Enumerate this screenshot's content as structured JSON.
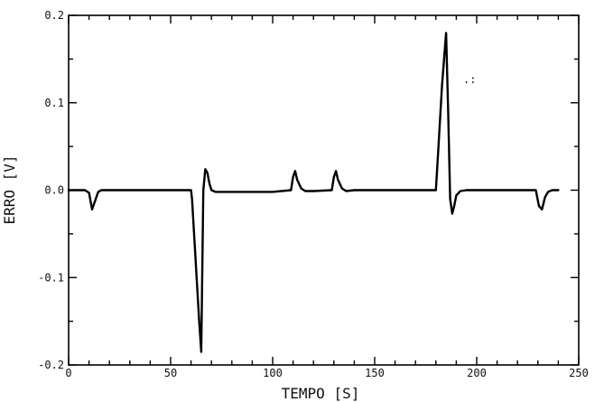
{
  "chart_data": {
    "type": "line",
    "xlabel": "TEMPO [S]",
    "ylabel": "ERRO [V]",
    "xlim": [
      0,
      250
    ],
    "ylim": [
      -0.2,
      0.2
    ],
    "x_ticks": [
      0,
      50,
      100,
      150,
      200,
      250
    ],
    "x_tick_labels": [
      "0",
      "50",
      "100",
      "150",
      "200",
      "250"
    ],
    "y_ticks": [
      -0.2,
      -0.1,
      0.0,
      0.1,
      0.2
    ],
    "y_tick_labels": [
      "-0.2",
      "-0.1",
      "0.0",
      "0.1",
      "0.2"
    ],
    "grid": false,
    "series": [
      {
        "x": [
          0,
          8,
          10,
          11.5,
          13,
          14.5,
          16,
          20,
          40,
          60,
          60.5,
          62,
          64,
          65,
          66,
          67,
          68,
          69,
          70,
          72,
          75,
          100,
          109,
          110,
          111,
          112,
          114,
          116,
          120,
          129,
          130,
          131,
          132,
          134,
          136,
          140,
          170,
          180,
          181,
          183,
          185,
          186,
          187,
          188,
          189,
          190,
          192,
          195,
          220,
          229,
          230.5,
          232,
          233.5,
          235,
          237,
          240
        ],
        "y": [
          0,
          0,
          -0.003,
          -0.022,
          -0.012,
          -0.002,
          0,
          0,
          0,
          0,
          -0.01,
          -0.07,
          -0.15,
          -0.185,
          0.0,
          0.024,
          0.02,
          0.008,
          0.0,
          -0.002,
          -0.002,
          -0.002,
          0.0,
          0.015,
          0.022,
          0.012,
          0.002,
          -0.001,
          -0.001,
          0.0,
          0.015,
          0.022,
          0.012,
          0.002,
          -0.001,
          0.0,
          0.0,
          0.0,
          0.04,
          0.12,
          0.18,
          0.09,
          -0.01,
          -0.027,
          -0.018,
          -0.006,
          -0.001,
          0.0,
          0.0,
          0.0,
          -0.018,
          -0.022,
          -0.008,
          -0.002,
          0.0,
          0.0
        ]
      }
    ],
    "annotation": ".:"
  }
}
